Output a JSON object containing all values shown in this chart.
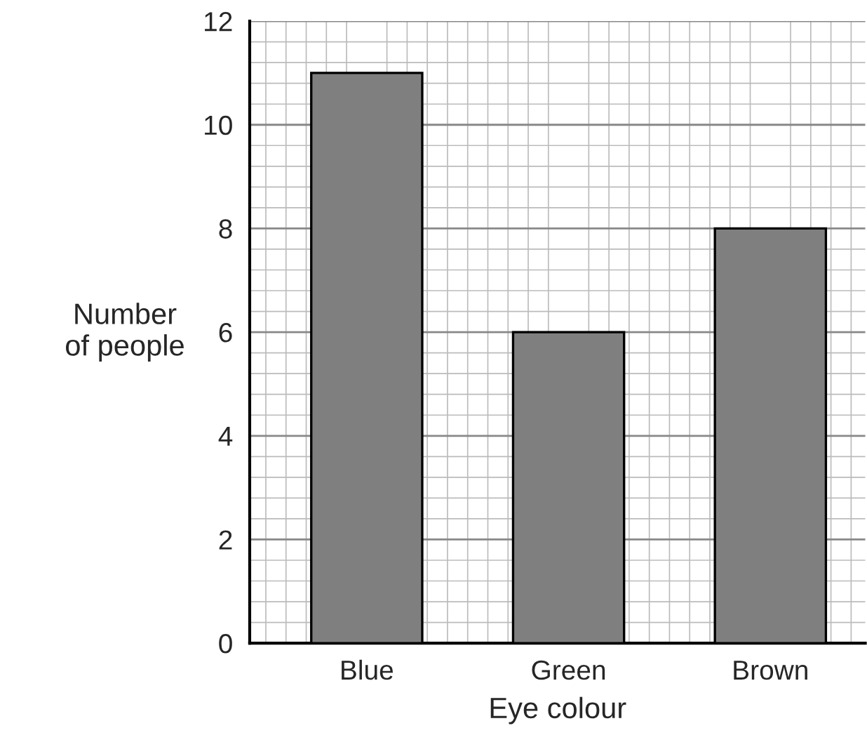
{
  "chart_data": {
    "type": "bar",
    "xlabel": "Eye colour",
    "ylabel": "Number\nof people",
    "categories": [
      "Blue",
      "Green",
      "Brown"
    ],
    "values": [
      11,
      6,
      8
    ],
    "color": "#7f7f7f",
    "ylim": [
      0,
      12
    ],
    "yticks": [
      0,
      2,
      4,
      6,
      8,
      10,
      12
    ],
    "grid": true
  }
}
